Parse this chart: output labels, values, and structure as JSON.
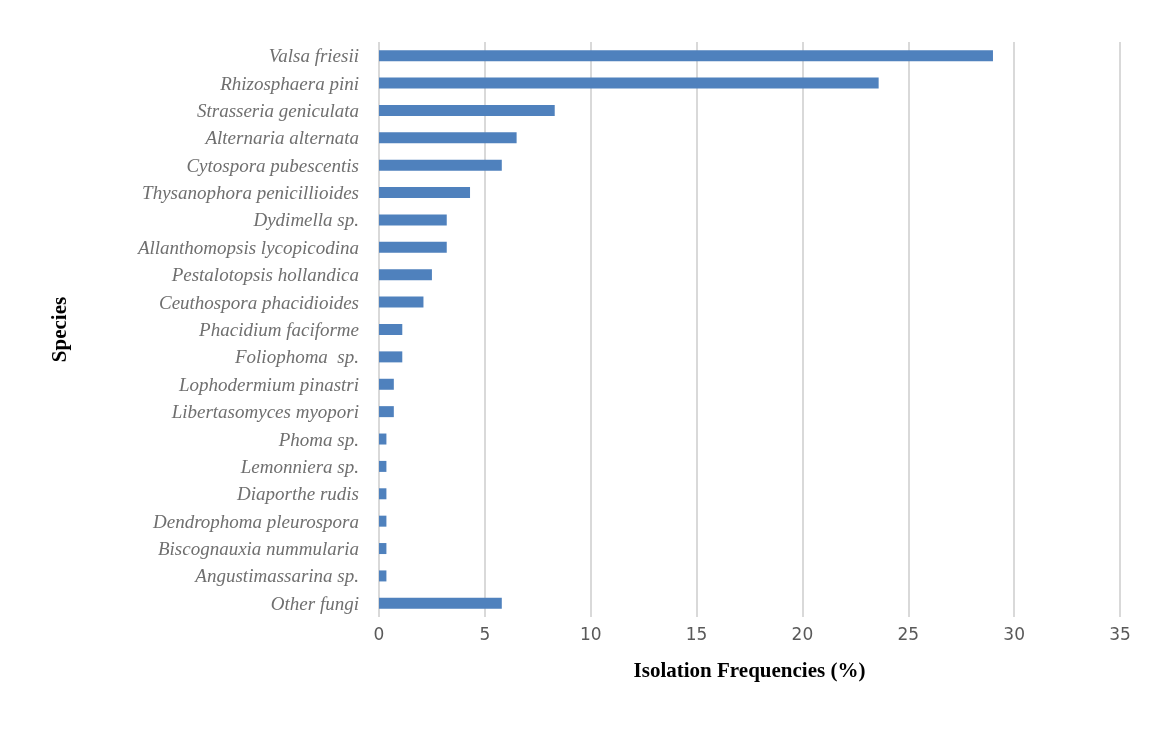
{
  "chart_data": {
    "type": "bar",
    "orientation": "horizontal",
    "categories": [
      "Valsa friesii",
      "Rhizosphaera pini",
      "Strasseria geniculata",
      "Alternaria alternata",
      "Cytospora pubescentis",
      "Thysanophora penicillioides",
      "Dydimella sp.",
      "Allanthomopsis lycopicodina",
      "Pestalotopsis hollandica",
      "Ceuthospora phacidioides",
      "Phacidium faciforme",
      "Foliophoma  sp.",
      "Lophodermium pinastri",
      "Libertasomyces myopori",
      "Phoma sp.",
      "Lemonniera sp.",
      "Diaporthe rudis",
      "Dendrophoma pleurospora",
      "Biscognauxia nummularia",
      "Angustimassarina sp.",
      "Other fungi"
    ],
    "values": [
      29.0,
      23.6,
      8.3,
      6.5,
      5.8,
      4.3,
      3.2,
      3.2,
      2.5,
      2.1,
      1.1,
      1.1,
      0.7,
      0.7,
      0.35,
      0.35,
      0.35,
      0.35,
      0.35,
      0.35,
      5.8
    ],
    "color": "#4f81bd",
    "xlabel": "Isolation Frequencies (%)",
    "ylabel": "Species",
    "xlim": [
      0,
      35
    ],
    "xticks": [
      0,
      5,
      10,
      15,
      20,
      25,
      30,
      35
    ],
    "grid": "x"
  }
}
